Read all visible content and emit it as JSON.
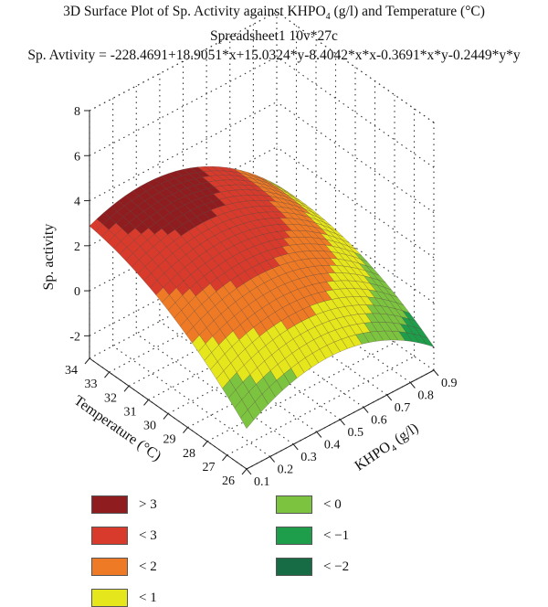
{
  "titles": {
    "line1_pre": "3D Surface Plot of Sp. Activity against KHPO",
    "line1_sub": "4",
    "line1_post": " (g/l) and Temperature (°C)",
    "line2": "Spreadsheet1 10v*27c",
    "line3": "Sp. Avtivity = -228.4691+18.9051*x+15.0324*y-8.4042*x*x-0.3691*x*y-0.2449*y*y"
  },
  "chart_data": {
    "type": "surface",
    "title": "3D Surface Plot of Sp. Activity against KHPO4 (g/l) and Temperature (°C)",
    "subtitle": "Spreadsheet1 10v*27c",
    "equation": "Sp. Avtivity = -228.4691+18.9051*x+15.0324*y-8.4042*x*x-0.3691*x*y-0.2449*y*y",
    "coefficients": {
      "c": -228.4691,
      "x": 18.9051,
      "y": 15.0324,
      "xx": -8.4042,
      "xy": -0.3691,
      "yy": -0.2449
    },
    "x_label_pre": "KHPO",
    "x_label_sub": "4",
    "x_label_post": " (g/l)",
    "y_label": "Temperature (°C)",
    "z_label": "Sp. activity",
    "x_ticks": [
      "0.1",
      "0.2",
      "0.3",
      "0.4",
      "0.5",
      "0.6",
      "0.7",
      "0.8",
      "0.9"
    ],
    "x_range": [
      0.1,
      0.9
    ],
    "y_ticks": [
      "26",
      "27",
      "28",
      "29",
      "30",
      "31",
      "32",
      "33",
      "34"
    ],
    "y_range": [
      26,
      34
    ],
    "z_ticks": [
      "-2",
      "0",
      "2",
      "4",
      "6",
      "8"
    ],
    "z_range": [
      -3,
      8
    ],
    "legend": [
      {
        "label": "> 3",
        "color": "#8f1d1f"
      },
      {
        "label": "< 3",
        "color": "#d83a2b"
      },
      {
        "label": "< 2",
        "color": "#ef7a25"
      },
      {
        "label": "< 1",
        "color": "#e6e61c"
      },
      {
        "label": "< 0",
        "color": "#7cc440"
      },
      {
        "label": "< −1",
        "color": "#1e9e4a"
      },
      {
        "label": "< −2",
        "color": "#176b45"
      }
    ]
  }
}
